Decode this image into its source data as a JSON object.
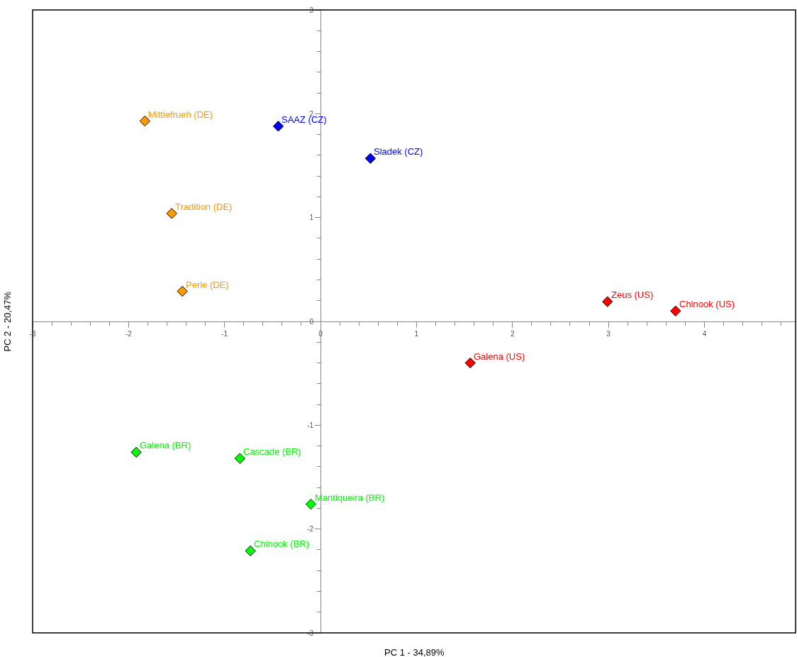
{
  "chart_data": {
    "type": "scatter",
    "xlabel": "PC 1 - 34,89%",
    "ylabel": "PC 2 - 20,47%",
    "xlim": [
      -3,
      4.95
    ],
    "ylim": [
      -3,
      3
    ],
    "xticks": [
      -3,
      -2,
      -1,
      0,
      1,
      2,
      3,
      4
    ],
    "yticks": [
      -3,
      -2,
      -1,
      0,
      1,
      2,
      3
    ],
    "marker": "diamond",
    "series": [
      {
        "color": "#ff9900",
        "x": [
          -1.83,
          -1.55,
          -1.44
        ],
        "values": [
          1.93,
          1.04,
          0.29
        ]
      },
      {
        "color": "#0000ff",
        "x": [
          -0.44,
          0.52
        ],
        "values": [
          1.88,
          1.57
        ]
      },
      {
        "color": "#ff0000",
        "x": [
          2.99,
          3.7,
          1.56
        ],
        "values": [
          0.19,
          0.1,
          -0.4
        ]
      },
      {
        "color": "#00ff00",
        "x": [
          -1.92,
          -0.84,
          -0.1,
          -0.73
        ],
        "values": [
          -1.26,
          -1.32,
          -1.76,
          -2.21
        ]
      }
    ],
    "annotations": [
      {
        "text": "Mittlefrueh (DE)",
        "x": -1.83,
        "y": 1.93
      },
      {
        "text": "Tradition (DE)",
        "x": -1.55,
        "y": 1.04
      },
      {
        "text": "Perle (DE)",
        "x": -1.44,
        "y": 0.29
      },
      {
        "text": "SAAZ (CZ)",
        "x": -0.44,
        "y": 1.88
      },
      {
        "text": "Sladek (CZ)",
        "x": 0.52,
        "y": 1.57
      },
      {
        "text": "Zeus (US)",
        "x": 2.99,
        "y": 0.19
      },
      {
        "text": "Chinook (US)",
        "x": 3.7,
        "y": 0.1
      },
      {
        "text": "Galena (US)",
        "x": 1.56,
        "y": -0.4
      },
      {
        "text": "Galena (BR)",
        "x": -1.92,
        "y": -1.26
      },
      {
        "text": "Cascade (BR)",
        "x": -0.84,
        "y": -1.32
      },
      {
        "text": "Mantiqueira (BR)",
        "x": -0.1,
        "y": -1.76
      },
      {
        "text": "Chinook (BR)",
        "x": -0.73,
        "y": -2.21
      }
    ]
  }
}
